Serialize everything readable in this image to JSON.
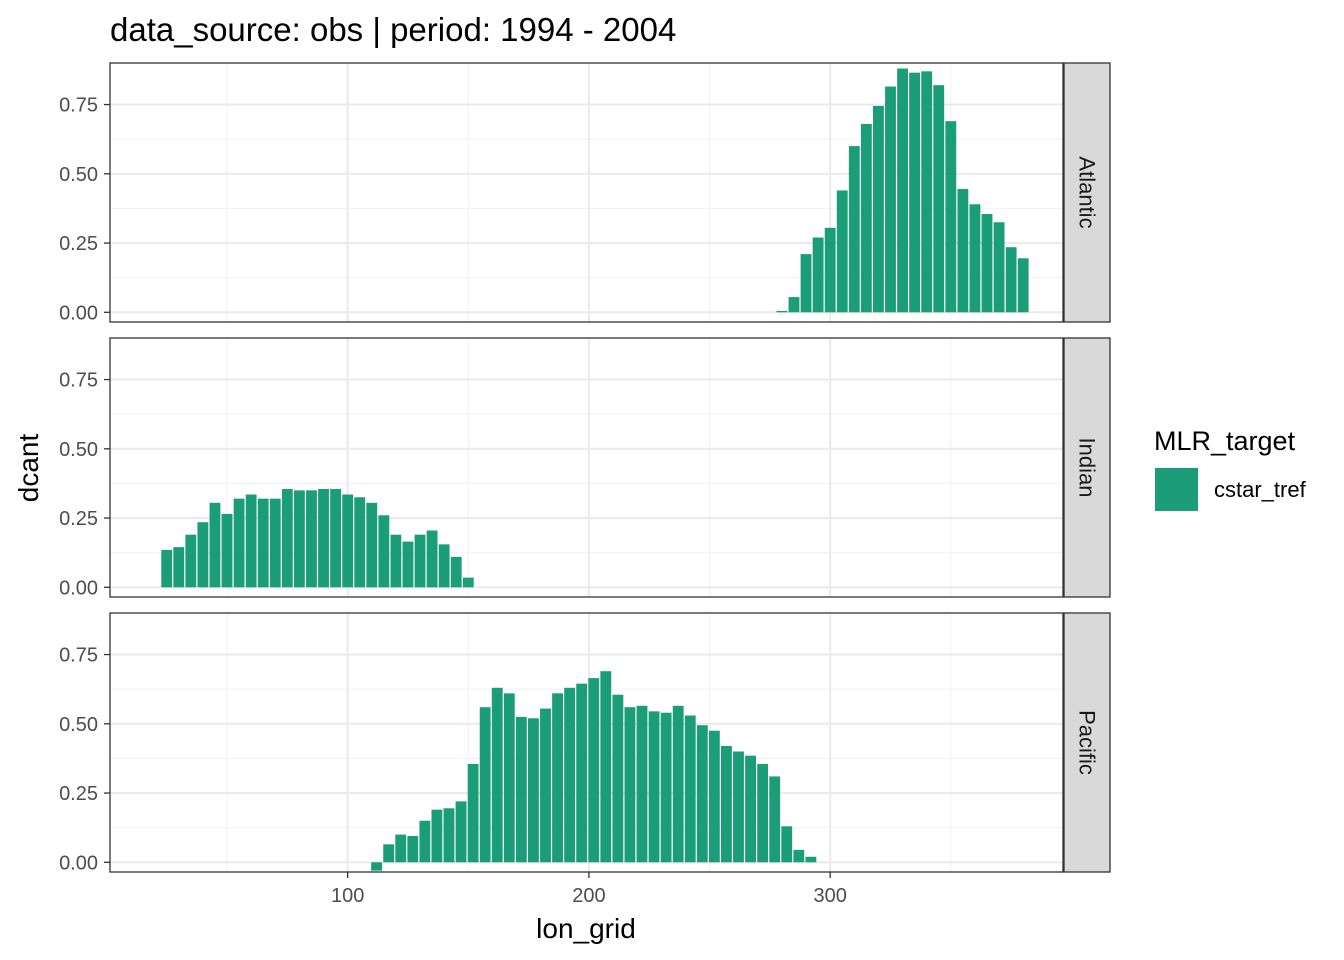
{
  "chart_data": {
    "type": "bar",
    "title": "data_source: obs | period: 1994 - 2004",
    "xlabel": "lon_grid",
    "ylabel": "dcant",
    "xlim": [
      1.5,
      396.5
    ],
    "ylim": [
      -0.035,
      0.9
    ],
    "x_ticks": [
      100,
      200,
      300
    ],
    "x_tick_labels": [
      "100",
      "200",
      "300"
    ],
    "y_ticks": [
      0,
      0.25,
      0.5,
      0.75
    ],
    "y_tick_labels": [
      "0.00",
      "0.25",
      "0.50",
      "0.75"
    ],
    "grid": true,
    "bar_width": 4.5,
    "legend": {
      "title": "MLR_target",
      "position": "right",
      "entries": [
        {
          "label": "cstar_tref",
          "color": "#1b9e77"
        }
      ]
    },
    "facets": [
      {
        "name": "Atlantic",
        "x": [
          280,
          285,
          290,
          295,
          300,
          305,
          310,
          315,
          320,
          325,
          330,
          335,
          340,
          345,
          350,
          355,
          360,
          365,
          370,
          375,
          380
        ],
        "values": [
          0.005,
          0.055,
          0.21,
          0.27,
          0.305,
          0.44,
          0.6,
          0.68,
          0.745,
          0.815,
          0.88,
          0.865,
          0.87,
          0.82,
          0.69,
          0.445,
          0.39,
          0.355,
          0.325,
          0.235,
          0.195
        ]
      },
      {
        "name": "Indian",
        "x": [
          25,
          30,
          35,
          40,
          45,
          50,
          55,
          60,
          65,
          70,
          75,
          80,
          85,
          90,
          95,
          100,
          105,
          110,
          115,
          120,
          125,
          130,
          135,
          140,
          145,
          150
        ],
        "values": [
          0.135,
          0.145,
          0.19,
          0.235,
          0.305,
          0.265,
          0.32,
          0.335,
          0.32,
          0.32,
          0.355,
          0.35,
          0.35,
          0.355,
          0.355,
          0.335,
          0.325,
          0.305,
          0.26,
          0.19,
          0.165,
          0.19,
          0.205,
          0.155,
          0.11,
          0.035
        ]
      },
      {
        "name": "Pacific",
        "x": [
          112,
          117,
          122,
          127,
          132,
          137,
          142,
          147,
          152,
          157,
          162,
          167,
          172,
          177,
          182,
          187,
          192,
          197,
          202,
          207,
          212,
          217,
          222,
          227,
          232,
          237,
          242,
          247,
          252,
          257,
          262,
          267,
          272,
          277,
          282,
          287,
          292,
          297
        ],
        "values": [
          -0.03,
          0.065,
          0.1,
          0.095,
          0.15,
          0.19,
          0.195,
          0.22,
          0.355,
          0.56,
          0.63,
          0.61,
          0.525,
          0.52,
          0.555,
          0.61,
          0.63,
          0.645,
          0.665,
          0.69,
          0.605,
          0.56,
          0.565,
          0.545,
          0.54,
          0.565,
          0.53,
          0.495,
          0.475,
          0.42,
          0.4,
          0.385,
          0.355,
          0.31,
          0.13,
          0.045,
          0.02,
          null
        ]
      }
    ]
  }
}
